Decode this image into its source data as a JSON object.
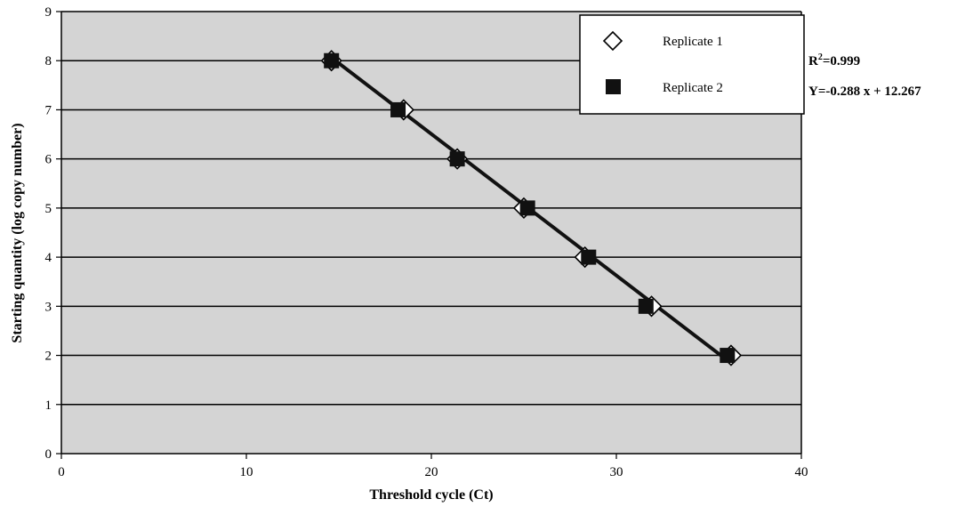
{
  "chart_data": {
    "type": "scatter",
    "title": "",
    "xlabel": "Threshold cycle (Ct)",
    "ylabel": "Starting quantity (log copy number)",
    "xlim": [
      0,
      40
    ],
    "ylim": [
      0,
      9
    ],
    "xticks": [
      0,
      10,
      20,
      30,
      40
    ],
    "yticks": [
      0,
      1,
      2,
      3,
      4,
      5,
      6,
      7,
      8,
      9
    ],
    "grid": "horizontal",
    "legend_position": "top-right",
    "plot_background": "#d4d4d4",
    "series": [
      {
        "name": "Replicate 1",
        "marker": "open-diamond",
        "x": [
          14.6,
          18.5,
          21.4,
          25.0,
          28.3,
          31.9,
          36.2
        ],
        "y": [
          8,
          7,
          6,
          5,
          4,
          3,
          2
        ]
      },
      {
        "name": "Replicate 2",
        "marker": "filled-square",
        "x": [
          14.6,
          18.2,
          21.4,
          25.2,
          28.5,
          31.6,
          36.0
        ],
        "y": [
          8,
          7,
          6,
          5,
          4,
          3,
          2
        ]
      }
    ],
    "trendline": {
      "slope": -0.288,
      "intercept": 12.267,
      "x_range": [
        14.6,
        36.2
      ]
    },
    "annotations": {
      "r2_base": "R",
      "r2_sup": "2",
      "r2_value": "=0.999",
      "equation": "Y=-0.288 x + 12.267"
    }
  }
}
